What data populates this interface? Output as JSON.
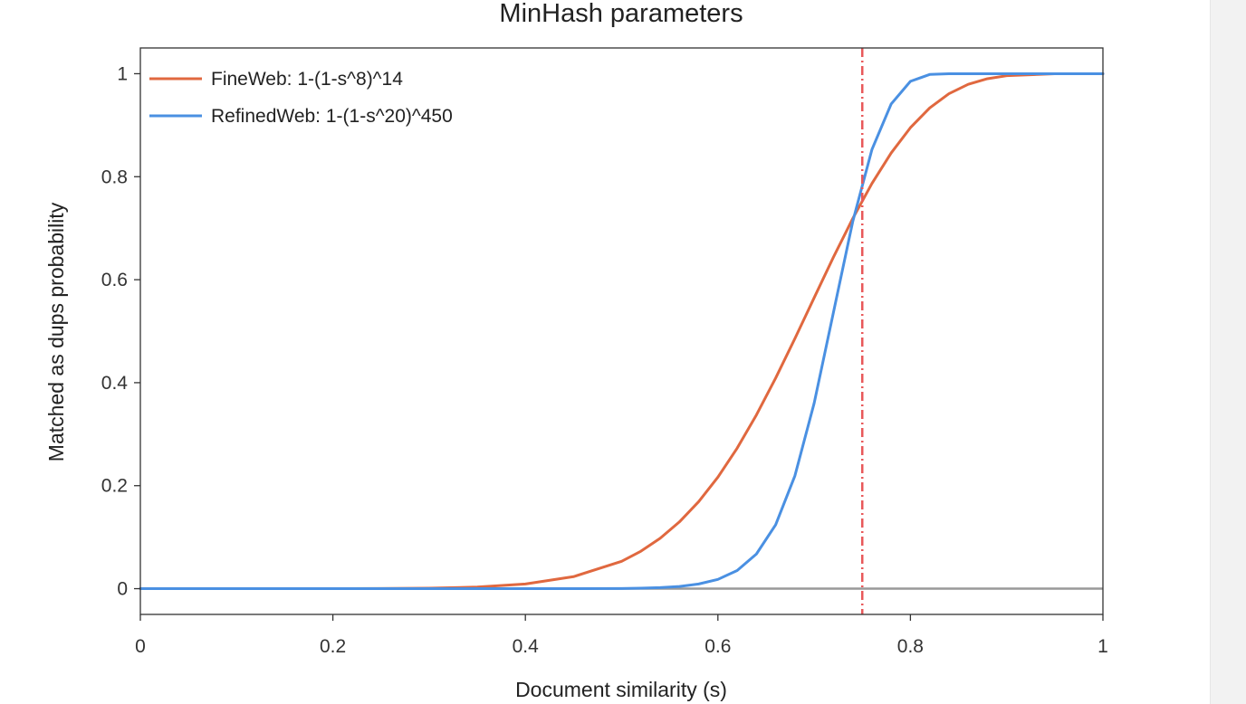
{
  "colors": {
    "fineweb": "#e0683f",
    "refinedweb": "#4a90e2",
    "threshold": "#e8585a",
    "baseline": "#999999",
    "frame": "#333333"
  },
  "chart_data": {
    "type": "line",
    "title": "MinHash parameters",
    "xlabel": "Document similarity (s)",
    "ylabel": "Matched as dups probability",
    "xlim": [
      0,
      1
    ],
    "ylim": [
      -0.05,
      1.05
    ],
    "xticks": [
      0,
      0.2,
      0.4,
      0.6,
      0.8,
      1
    ],
    "xtick_labels": [
      "0",
      "0.2",
      "0.4",
      "0.6",
      "0.8",
      "1"
    ],
    "yticks": [
      0,
      0.2,
      0.4,
      0.6,
      0.8,
      1
    ],
    "ytick_labels": [
      "0",
      "0.2",
      "0.4",
      "0.6",
      "0.8",
      "1"
    ],
    "grid": false,
    "legend_position": "top-left",
    "reference_lines": {
      "horizontal_y": 0,
      "vertical_x": 0.75
    },
    "x": [
      0,
      0.05,
      0.1,
      0.15,
      0.2,
      0.25,
      0.3,
      0.35,
      0.4,
      0.45,
      0.5,
      0.52,
      0.54,
      0.56,
      0.58,
      0.6,
      0.62,
      0.64,
      0.66,
      0.68,
      0.7,
      0.72,
      0.74,
      0.76,
      0.78,
      0.8,
      0.82,
      0.84,
      0.86,
      0.88,
      0.9,
      0.95,
      1
    ],
    "series": [
      {
        "name": "FineWeb: 1-(1-s^8)^14",
        "color_key": "fineweb",
        "values": [
          0,
          0,
          0,
          0,
          0.0001,
          0.0002,
          0.0009,
          0.0031,
          0.0091,
          0.0233,
          0.0532,
          0.0727,
          0.0978,
          0.1296,
          0.1689,
          0.2165,
          0.2728,
          0.3373,
          0.4089,
          0.4857,
          0.5649,
          0.6436,
          0.7184,
          0.7867,
          0.8461,
          0.8952,
          0.9335,
          0.9611,
          0.9794,
          0.9903,
          0.9961,
          0.9999,
          1
        ]
      },
      {
        "name": "RefinedWeb: 1-(1-s^20)^450",
        "color_key": "refinedweb",
        "values": [
          0,
          0,
          0,
          0,
          0,
          0,
          0,
          0,
          0,
          0,
          0.0004,
          0.0009,
          0.002,
          0.0043,
          0.0091,
          0.018,
          0.0353,
          0.0673,
          0.124,
          0.2192,
          0.3602,
          0.5361,
          0.7121,
          0.8526,
          0.9412,
          0.9852,
          0.9985,
          1,
          1,
          1,
          1,
          1,
          1
        ]
      }
    ]
  }
}
